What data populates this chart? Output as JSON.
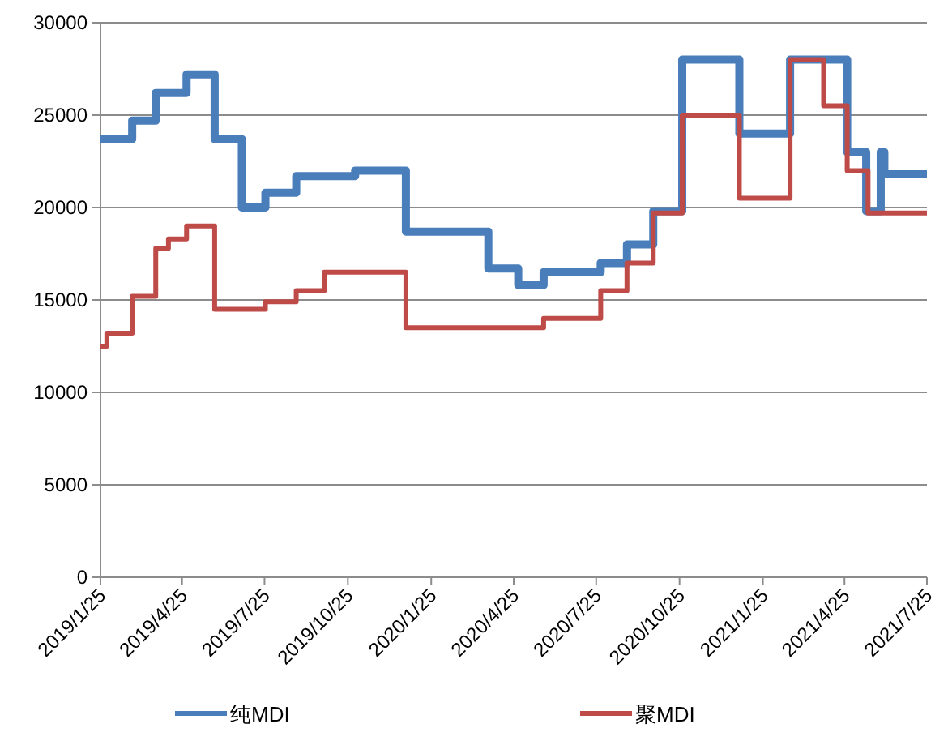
{
  "chart_data": {
    "type": "step",
    "xlim": [
      "2019-01-25",
      "2021-07-25"
    ],
    "xticks": [
      {
        "value": "2019-01-25",
        "label": "2019/1/25"
      },
      {
        "value": "2019-04-25",
        "label": "2019/4/25"
      },
      {
        "value": "2019-07-25",
        "label": "2019/7/25"
      },
      {
        "value": "2019-10-25",
        "label": "2019/10/25"
      },
      {
        "value": "2020-01-25",
        "label": "2020/1/25"
      },
      {
        "value": "2020-04-25",
        "label": "2020/4/25"
      },
      {
        "value": "2020-07-25",
        "label": "2020/7/25"
      },
      {
        "value": "2020-10-25",
        "label": "2020/10/25"
      },
      {
        "value": "2021-01-25",
        "label": "2021/1/25"
      },
      {
        "value": "2021-04-25",
        "label": "2021/4/25"
      },
      {
        "value": "2021-07-25",
        "label": "2021/7/25"
      }
    ],
    "ylim": [
      0,
      30000
    ],
    "yticks": [
      0,
      5000,
      10000,
      15000,
      20000,
      25000,
      30000
    ],
    "grid": "y",
    "legend": "bottom",
    "series": [
      {
        "name": "纯MDI",
        "color": "#4a7ebb",
        "x": [
          "2019-01-25",
          "2019-03-01",
          "2019-03-27",
          "2019-04-30",
          "2019-05-31",
          "2019-06-30",
          "2019-07-26",
          "2019-08-29",
          "2019-11-02",
          "2019-12-28",
          "2020-03-28",
          "2020-04-30",
          "2020-05-28",
          "2020-07-30",
          "2020-08-28",
          "2020-09-26",
          "2020-10-28",
          "2020-12-30",
          "2021-02-24",
          "2021-04-28",
          "2021-05-19",
          "2021-06-04",
          "2021-06-08",
          "2021-07-25"
        ],
        "values": [
          23700,
          24700,
          26200,
          27200,
          23700,
          20000,
          20800,
          21700,
          22000,
          18700,
          16700,
          15800,
          16500,
          17000,
          18000,
          19800,
          28000,
          24000,
          28000,
          23000,
          19800,
          23000,
          21800,
          21800
        ]
      },
      {
        "name": "聚MDI",
        "color": "#be4b48",
        "x": [
          "2019-01-25",
          "2019-02-01",
          "2019-03-01",
          "2019-03-27",
          "2019-04-10",
          "2019-04-30",
          "2019-05-31",
          "2019-07-26",
          "2019-08-29",
          "2019-09-29",
          "2019-12-28",
          "2020-05-28",
          "2020-07-30",
          "2020-08-28",
          "2020-09-26",
          "2020-10-28",
          "2020-12-30",
          "2021-02-24",
          "2021-04-02",
          "2021-04-28",
          "2021-05-21",
          "2021-07-25"
        ],
        "values": [
          12500,
          13200,
          15200,
          17800,
          18300,
          19000,
          14500,
          14900,
          15500,
          16500,
          13500,
          14000,
          15500,
          17000,
          19700,
          25000,
          20500,
          28000,
          25500,
          22000,
          19700,
          19700
        ]
      }
    ]
  }
}
